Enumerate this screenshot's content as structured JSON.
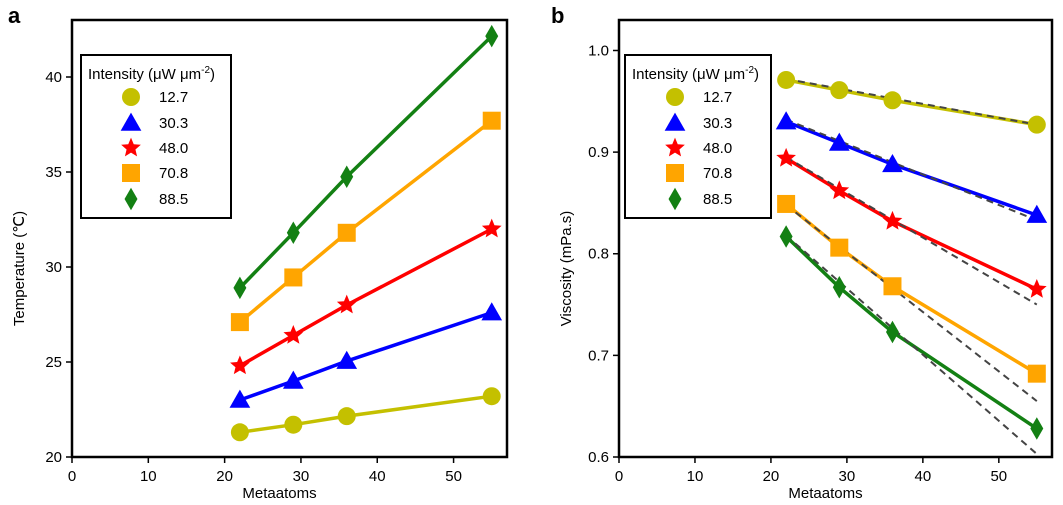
{
  "chart_data": [
    {
      "type": "line",
      "panel": "a",
      "xlabel": "Metaatoms",
      "ylabel": "Temperature (℃)",
      "xlim": [
        0,
        57
      ],
      "ylim": [
        20,
        43
      ],
      "xticks": [
        0,
        10,
        20,
        30,
        40,
        50
      ],
      "yticks": [
        20,
        25,
        30,
        35,
        40
      ],
      "legend_title": "Intensity (μW μm",
      "legend_title_sup": "-2",
      "legend_title_end": ")",
      "legend_position": "upper-left",
      "x": [
        22,
        29,
        36,
        55
      ],
      "series": [
        {
          "name": "12.7",
          "color": "#c4c000",
          "marker": "circle",
          "values": [
            21.3,
            21.7,
            22.15,
            23.2
          ]
        },
        {
          "name": "30.3",
          "color": "#0000ff",
          "marker": "triangle",
          "values": [
            23.0,
            24.0,
            25.05,
            27.6
          ]
        },
        {
          "name": "48.0",
          "color": "#ff0000",
          "marker": "star",
          "values": [
            24.8,
            26.4,
            28.0,
            32.0
          ]
        },
        {
          "name": "70.8",
          "color": "#ffa500",
          "marker": "square",
          "values": [
            27.1,
            29.45,
            31.8,
            37.7
          ]
        },
        {
          "name": "88.5",
          "color": "#138013",
          "marker": "diamond",
          "values": [
            28.9,
            31.8,
            34.75,
            42.15
          ]
        }
      ]
    },
    {
      "type": "line",
      "panel": "b",
      "xlabel": "Metaatoms",
      "ylabel": "Viscosity (mPa.s)",
      "xlim": [
        0,
        57
      ],
      "ylim": [
        0.6,
        1.03
      ],
      "xticks": [
        0,
        10,
        20,
        30,
        40,
        50
      ],
      "yticks": [
        0.6,
        0.7,
        0.8,
        0.9,
        1.0
      ],
      "ytick_labels": [
        "0.6",
        "0.7",
        "0.8",
        "0.9",
        "1.0"
      ],
      "legend_title": "Intensity (μW μm",
      "legend_title_sup": "-2",
      "legend_title_end": ")",
      "legend_position": "upper-left",
      "x": [
        22,
        29,
        36,
        55
      ],
      "series": [
        {
          "name": "12.7",
          "color": "#c4c000",
          "marker": "circle",
          "values": [
            0.971,
            0.961,
            0.951,
            0.927
          ]
        },
        {
          "name": "30.3",
          "color": "#0000ff",
          "marker": "triangle",
          "values": [
            0.93,
            0.909,
            0.888,
            0.838
          ]
        },
        {
          "name": "48.0",
          "color": "#ff0000",
          "marker": "star",
          "values": [
            0.894,
            0.862,
            0.832,
            0.765
          ]
        },
        {
          "name": "70.8",
          "color": "#ffa500",
          "marker": "square",
          "values": [
            0.849,
            0.806,
            0.768,
            0.682
          ]
        },
        {
          "name": "88.5",
          "color": "#138013",
          "marker": "diamond",
          "values": [
            0.817,
            0.767,
            0.723,
            0.628
          ]
        }
      ],
      "fit_lines": [
        {
          "name": "fit-12.7",
          "x": [
            22,
            55
          ],
          "y": [
            0.972,
            0.927
          ]
        },
        {
          "name": "fit-30.3",
          "x": [
            22,
            55
          ],
          "y": [
            0.932,
            0.833
          ]
        },
        {
          "name": "fit-48.0",
          "x": [
            22,
            55
          ],
          "y": [
            0.895,
            0.75
          ]
        },
        {
          "name": "fit-70.8",
          "x": [
            22,
            55
          ],
          "y": [
            0.848,
            0.655
          ]
        },
        {
          "name": "fit-88.5",
          "x": [
            22,
            55
          ],
          "y": [
            0.818,
            0.603
          ]
        }
      ],
      "fit_style": "dashed",
      "fit_color": "#444444"
    }
  ],
  "panel_labels": [
    "a",
    "b"
  ]
}
